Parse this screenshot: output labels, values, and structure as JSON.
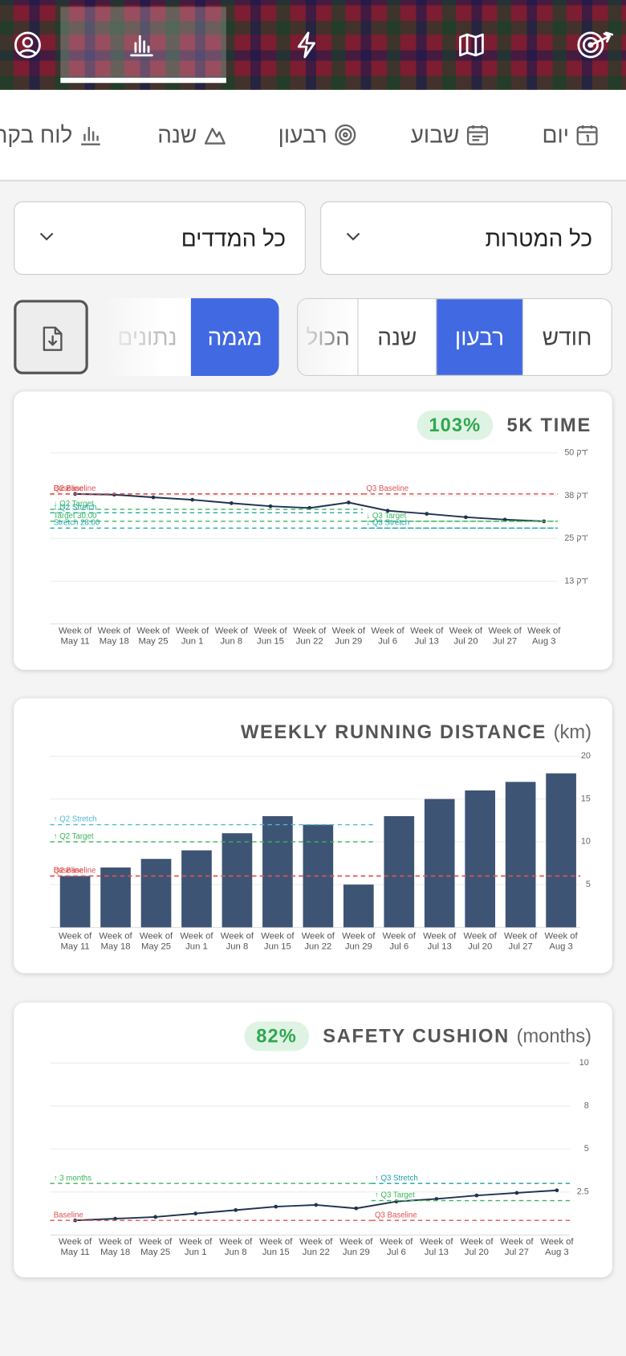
{
  "period_tabs": [
    "יום",
    "שבוע",
    "רבעון",
    "שנה",
    "לוח בקרה"
  ],
  "filters": [
    "כל המטרות",
    "כל המדדים"
  ],
  "range_segments": {
    "options": [
      "חודש",
      "רבעון",
      "שנה",
      "הכול"
    ],
    "active": 1
  },
  "view_segments": {
    "options": [
      "מגמה",
      "נתונים"
    ],
    "active": 0
  },
  "chart_data": [
    {
      "type": "line",
      "title": "5K TIME",
      "badge": "103%",
      "categories": [
        "Week of May 11",
        "Week of May 18",
        "Week of May 25",
        "Week of Jun 1",
        "Week of Jun 8",
        "Week of Jun 15",
        "Week of Jun 22",
        "Week of Jun 29",
        "Week of Jul 6",
        "Week of Jul 13",
        "Week of Jul 20",
        "Week of Jul 27",
        "Week of Aug 3"
      ],
      "values": [
        38,
        37.8,
        37,
        36.3,
        35.3,
        34.4,
        33.9,
        35.5,
        33.1,
        32.2,
        31.2,
        30.5,
        30
      ],
      "color": "#1f3350",
      "ylim": [
        0,
        50
      ],
      "yticks": [
        {
          "value": 12.5,
          "label": "13 דק'"
        },
        {
          "value": 25,
          "label": "25 דק'"
        },
        {
          "value": 37.5,
          "label": "38 דק'"
        },
        {
          "value": 50,
          "label": "50 דק'"
        }
      ],
      "grid": true,
      "reference_lines": [
        {
          "label": "Q2 Baseline",
          "value": 38,
          "color": "#e05252"
        },
        {
          "label": "Baseline",
          "value": 38,
          "color": "#e05252"
        },
        {
          "label": "↓ Q2 Target",
          "value": 33.5,
          "color": "#3cb55a"
        },
        {
          "label": "↓ Q2 Stretch",
          "value": 32.5,
          "color": "#22a7a7"
        },
        {
          "label": "Target 30:00",
          "value": 30,
          "color": "#3cb55a"
        },
        {
          "label": "Stretch 28:00",
          "value": 28,
          "color": "#22a7a7"
        },
        {
          "label": "Q3 Baseline",
          "value": 38,
          "color": "#e05252"
        },
        {
          "label": "↓ Q3 Target",
          "value": 30,
          "color": "#3cb55a"
        },
        {
          "label": "↓ Q3 Stretch",
          "value": 28,
          "color": "#22a7a7"
        }
      ]
    },
    {
      "type": "bar",
      "title": "WEEKLY RUNNING DISTANCE",
      "unit": "(km)",
      "categories": [
        "Week of May 11",
        "Week of May 18",
        "Week of May 25",
        "Week of Jun 1",
        "Week of Jun 8",
        "Week of Jun 15",
        "Week of Jun 22",
        "Week of Jun 29",
        "Week of Jul 6",
        "Week of Jul 13",
        "Week of Jul 20",
        "Week of Jul 27",
        "Week of Aug 3"
      ],
      "values": [
        6,
        7,
        8,
        9,
        11,
        13,
        12,
        5,
        13,
        15,
        16,
        17,
        18
      ],
      "color": "#3d5475",
      "ylim": [
        0,
        20
      ],
      "yticks": [
        5,
        10,
        15,
        20
      ],
      "grid": true,
      "reference_lines": [
        {
          "label": "↑ Q2 Stretch",
          "value": 12,
          "color": "#4fb8d6"
        },
        {
          "label": "↑ Q2 Target",
          "value": 10,
          "color": "#3cb55a"
        },
        {
          "label": "Q2 Baseline",
          "value": 6,
          "color": "#e05252"
        },
        {
          "label": "Baseline",
          "value": 6,
          "color": "#e05252"
        }
      ]
    },
    {
      "type": "line",
      "title": "SAFETY CUSHION",
      "unit": "(months)",
      "badge": "82%",
      "categories": [
        "Week of May 11",
        "Week of May 18",
        "Week of May 25",
        "Week of Jun 1",
        "Week of Jun 8",
        "Week of Jun 15",
        "Week of Jun 22",
        "Week of Jun 29",
        "Week of Jul 6",
        "Week of Jul 13",
        "Week of Jul 20",
        "Week of Jul 27",
        "Week of Aug 3"
      ],
      "values": [
        0.85,
        0.95,
        1.05,
        1.25,
        1.45,
        1.65,
        1.75,
        1.55,
        1.95,
        2.1,
        2.3,
        2.45,
        2.6
      ],
      "color": "#1f3350",
      "ylim": [
        0,
        10
      ],
      "yticks": [
        2.5,
        5,
        {
          "value": 7.5,
          "label": "8"
        },
        10
      ],
      "grid": true,
      "reference_lines": [
        {
          "label": "↑ 3 months",
          "value": 3,
          "color": "#3cb55a"
        },
        {
          "label": "Baseline",
          "value": 0.85,
          "color": "#e05252"
        },
        {
          "label": "↑ Q3 Stretch",
          "value": 3,
          "color": "#1a9fa8"
        },
        {
          "label": "↑ Q3 Target",
          "value": 2,
          "color": "#3cb55a"
        },
        {
          "label": "Q3 Baseline",
          "value": 0.85,
          "color": "#e05252"
        }
      ]
    }
  ]
}
